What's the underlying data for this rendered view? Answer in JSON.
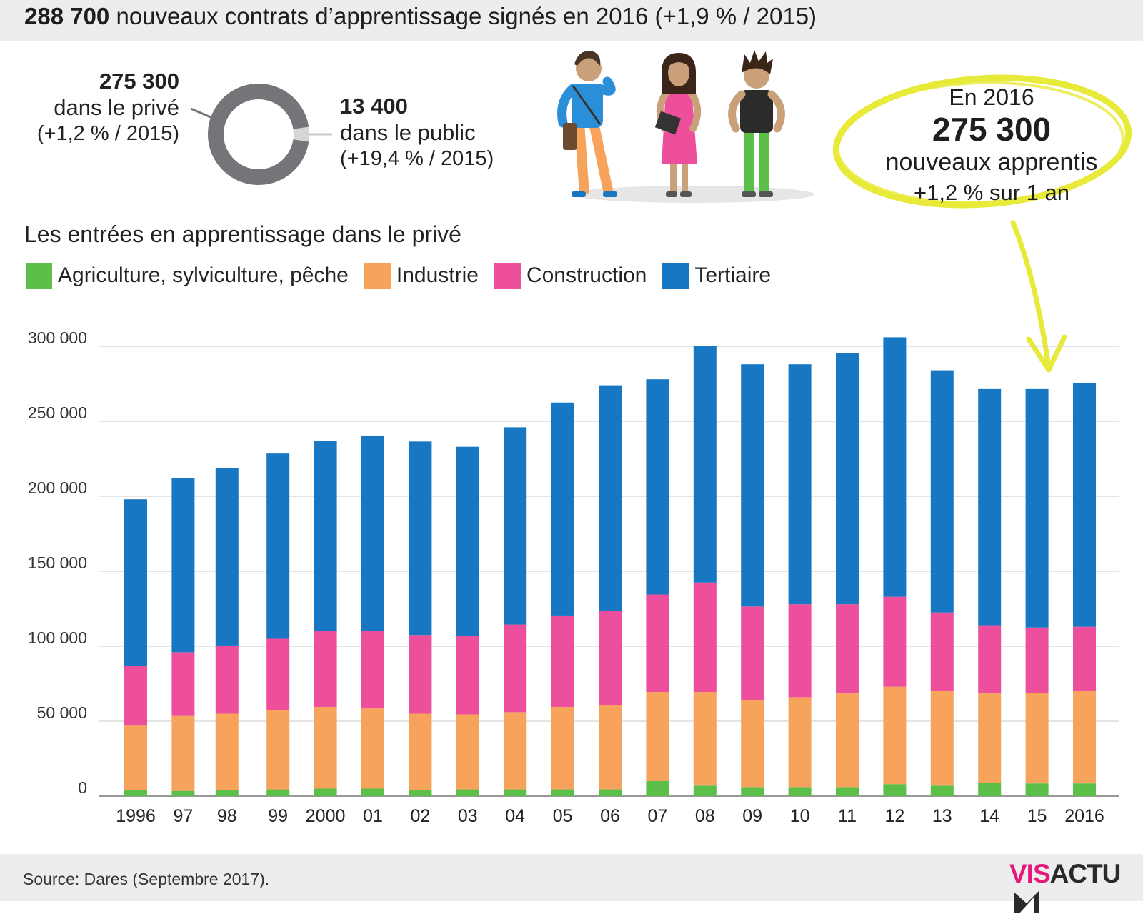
{
  "header": {
    "title_bold": "288 700",
    "title_rest": " nouveaux contrats d’apprentissage signés en 2016 (+1,9 % / 2015)"
  },
  "donut": {
    "private": {
      "value": "275 300",
      "label": "dans le privé",
      "change": "(+1,2 % / 2015)",
      "amount": 275300,
      "color": "#747578"
    },
    "public": {
      "value": "13 400",
      "label": "dans le public",
      "change": "(+19,4 % / 2015)",
      "amount": 13400,
      "color": "#d6d6d6"
    }
  },
  "highlight": {
    "line1": "En 2016",
    "line2": "275 300",
    "line3": "nouveaux apprentis",
    "line4": "+1,2 % sur 1 an",
    "color": "#e8ea3a"
  },
  "section_title": "Les entrées en apprentissage dans le privé",
  "source": "Source: Dares (Septembre 2017).",
  "logo": {
    "part1": "VIS",
    "part2": "ACTU"
  },
  "chart_data": {
    "type": "bar",
    "stacked": true,
    "categories": [
      "1996",
      "97",
      "98",
      "99",
      "2000",
      "01",
      "02",
      "03",
      "04",
      "05",
      "06",
      "07",
      "08",
      "09",
      "10",
      "11",
      "12",
      "13",
      "14",
      "15",
      "2016"
    ],
    "ylim": [
      0,
      300000
    ],
    "yticks": [
      0,
      50000,
      100000,
      150000,
      200000,
      250000,
      300000
    ],
    "ytick_labels": [
      "0",
      "50 000",
      "100 000",
      "150 000",
      "200 000",
      "250 000",
      "300 000"
    ],
    "grid": true,
    "legend_position": "top-left",
    "series": [
      {
        "name": "Agriculture, sylviculture, pêche",
        "color": "#5cbf4a",
        "values": [
          4000,
          3500,
          4000,
          4500,
          5000,
          5000,
          4000,
          4500,
          4500,
          4500,
          4500,
          10000,
          7000,
          6000,
          6000,
          6000,
          8000,
          7000,
          9000,
          8500,
          8500
        ]
      },
      {
        "name": "Industrie",
        "color": "#f7a35c",
        "values": [
          43000,
          50000,
          51000,
          53000,
          54500,
          53500,
          51000,
          50000,
          51500,
          55000,
          56000,
          59500,
          62500,
          58000,
          60000,
          62500,
          65000,
          63000,
          59500,
          60500,
          61500
        ]
      },
      {
        "name": "Construction",
        "color": "#ee4f9c",
        "values": [
          40000,
          42500,
          45500,
          47500,
          50500,
          51500,
          52500,
          52500,
          58500,
          61000,
          63000,
          65000,
          73000,
          62500,
          62000,
          59500,
          60000,
          52500,
          45500,
          43500,
          43000
        ]
      },
      {
        "name": "Tertiaire",
        "color": "#1877c2",
        "values": [
          111000,
          116000,
          118500,
          123500,
          127000,
          130500,
          129000,
          126000,
          131500,
          142000,
          150500,
          143500,
          157500,
          161500,
          160000,
          167500,
          173000,
          161500,
          157500,
          159000,
          162500
        ]
      }
    ]
  }
}
